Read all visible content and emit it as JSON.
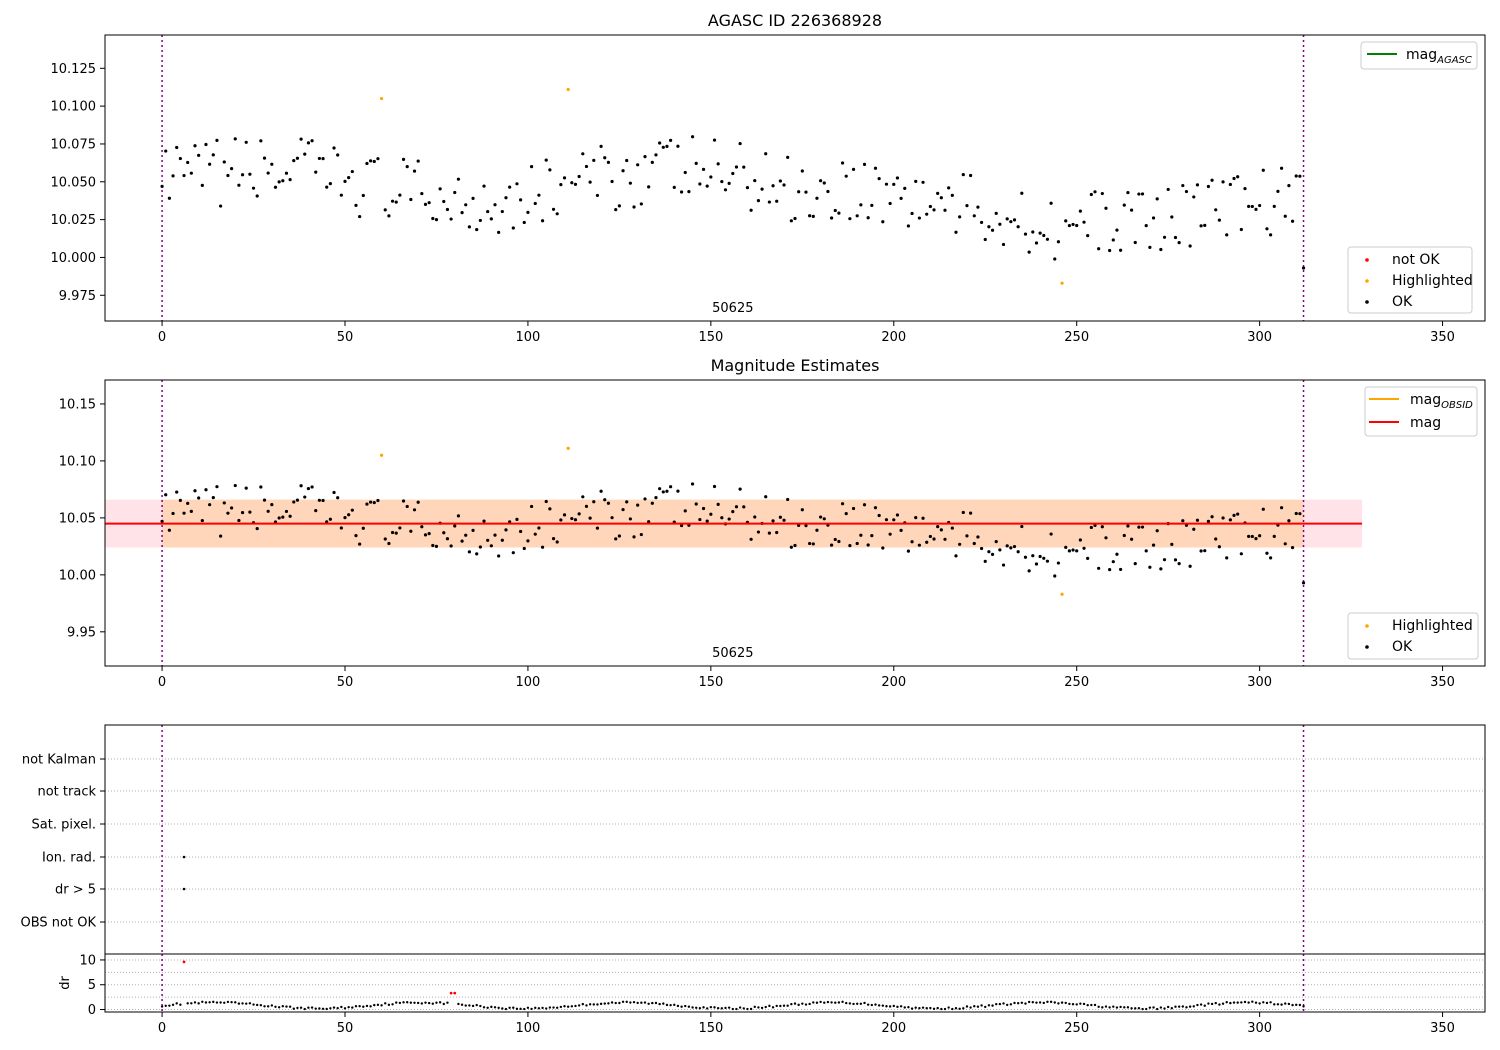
{
  "colors": {
    "ok": "#000000",
    "not_ok": "#ff0000",
    "highlighted": "#ffa500",
    "vline": "#800080",
    "mag_agasc": "#008000",
    "mag_obsid": "#ffa500",
    "mag": "#ff0000",
    "band_outer": "#ffc0cb",
    "band_inner": "#ffa500",
    "grid": "#b0b0b0"
  },
  "chart_data": [
    {
      "type": "scatter",
      "title": "AGASC ID 226368928",
      "xlim": [
        -15.6,
        361.6
      ],
      "ylim": [
        9.958,
        10.147
      ],
      "xticks": [
        0,
        50,
        100,
        150,
        200,
        250,
        300,
        350
      ],
      "yticks": [
        9.975,
        10.0,
        10.025,
        10.05,
        10.075,
        10.1,
        10.125
      ],
      "yticklabels": [
        "9.975",
        "10.000",
        "10.025",
        "10.050",
        "10.075",
        "10.100",
        "10.125"
      ],
      "annotation": {
        "text": "50625",
        "x": 156
      },
      "vlines": [
        0,
        312
      ],
      "legend_lines": [
        {
          "name": "mag",
          "subscript": "AGASC",
          "color": "#008000"
        }
      ],
      "legend_points": [
        {
          "name": "not OK",
          "color": "#ff0000"
        },
        {
          "name": "Highlighted",
          "color": "#ffa500"
        },
        {
          "name": "OK",
          "color": "#000000"
        }
      ],
      "highlighted_points": [
        [
          60,
          10.105
        ],
        [
          111,
          10.111
        ],
        [
          246,
          9.983
        ]
      ],
      "not_ok_points": []
    },
    {
      "type": "scatter",
      "title": "Magnitude Estimates",
      "xlim": [
        -15.6,
        361.6
      ],
      "ylim": [
        9.92,
        10.171
      ],
      "xticks": [
        0,
        50,
        100,
        150,
        200,
        250,
        300,
        350
      ],
      "yticks": [
        9.95,
        10.0,
        10.05,
        10.1,
        10.15
      ],
      "yticklabels": [
        "9.95",
        "10.00",
        "10.05",
        "10.10",
        "10.15"
      ],
      "annotation": {
        "text": "50625",
        "x": 156
      },
      "vlines": [
        0,
        312
      ],
      "band_outer": {
        "x": [
          -15.6,
          328
        ],
        "y": [
          10.024,
          10.066
        ]
      },
      "band_inner": {
        "x": [
          0,
          312
        ],
        "y": [
          10.024,
          10.066
        ]
      },
      "mag_line": {
        "x": [
          -15.6,
          328
        ],
        "y": 10.045
      },
      "legend_lines": [
        {
          "name": "mag",
          "subscript": "OBSID",
          "color": "#ffa500"
        },
        {
          "name": "mag",
          "subscript": "",
          "color": "#ff0000"
        }
      ],
      "legend_points": [
        {
          "name": "Highlighted",
          "color": "#ffa500"
        },
        {
          "name": "OK",
          "color": "#000000"
        }
      ],
      "highlighted_points": [
        [
          60,
          10.105
        ],
        [
          111,
          10.111
        ],
        [
          246,
          9.983
        ]
      ]
    },
    {
      "type": "scatter",
      "title": "",
      "xlim": [
        -15.6,
        361.6
      ],
      "flag_labels": [
        "not Kalman",
        "not track",
        "Sat. pixel.",
        "Ion. rad.",
        "dr > 5",
        "OBS not OK"
      ],
      "flag_points": [
        {
          "flag": "Ion. rad.",
          "x": 6
        },
        {
          "flag": "dr > 5",
          "x": 6
        }
      ],
      "vlines": [
        0,
        312
      ]
    },
    {
      "type": "scatter",
      "title": "",
      "xlim": [
        -15.6,
        361.6
      ],
      "ylim": [
        -0.5,
        11.2
      ],
      "xticks": [
        0,
        50,
        100,
        150,
        200,
        250,
        300,
        350
      ],
      "yticks": [
        0,
        5,
        10
      ],
      "ylabel": "dr",
      "vlines": [
        0,
        312
      ],
      "dr_red_points": [
        [
          6,
          9.6
        ],
        [
          79,
          3.3
        ],
        [
          80,
          3.3
        ]
      ]
    }
  ]
}
